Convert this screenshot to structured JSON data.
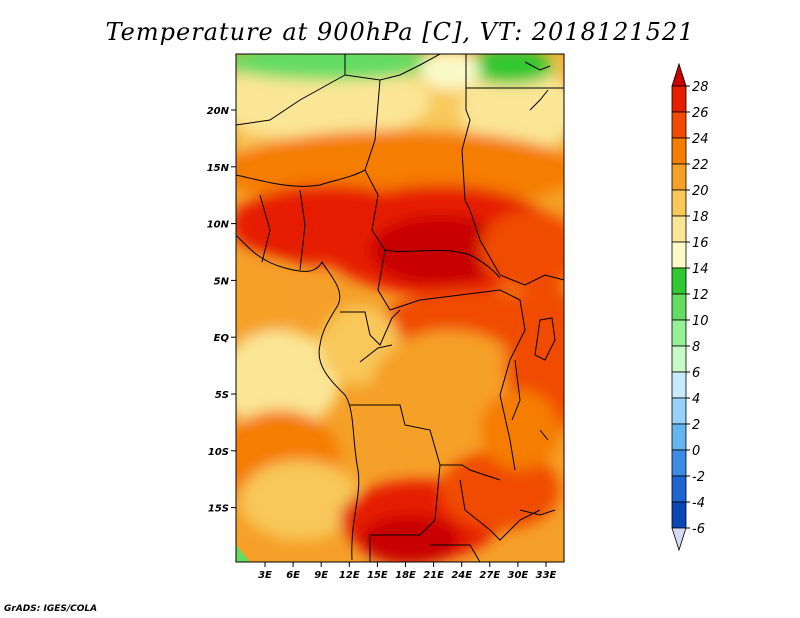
{
  "title": "Temperature at 900hPa [C], VT: 2018121521",
  "credit": "GrADS: IGES/COLA",
  "map": {
    "lon_labels": [
      "3E",
      "6E",
      "9E",
      "12E",
      "15E",
      "18E",
      "21E",
      "24E",
      "27E",
      "30E",
      "33E"
    ],
    "lat_labels": [
      "20N",
      "15N",
      "10N",
      "5N",
      "EQ",
      "5S",
      "10S",
      "15S"
    ]
  },
  "colorbar": {
    "labels": [
      "28",
      "26",
      "24",
      "22",
      "20",
      "18",
      "16",
      "14",
      "12",
      "10",
      "8",
      "6",
      "4",
      "2",
      "0",
      "-2",
      "-4",
      "-6"
    ],
    "colors": [
      "#c80000",
      "#e61e00",
      "#f04b00",
      "#f57d00",
      "#f5a028",
      "#f8c85a",
      "#fae696",
      "#fafac8",
      "#32c832",
      "#64dc64",
      "#96f096",
      "#c8fac8",
      "#c8ebfa",
      "#96d2fa",
      "#64b4f0",
      "#3c8ce6",
      "#1e64d2",
      "#0a46b4",
      "#00148c"
    ]
  }
}
